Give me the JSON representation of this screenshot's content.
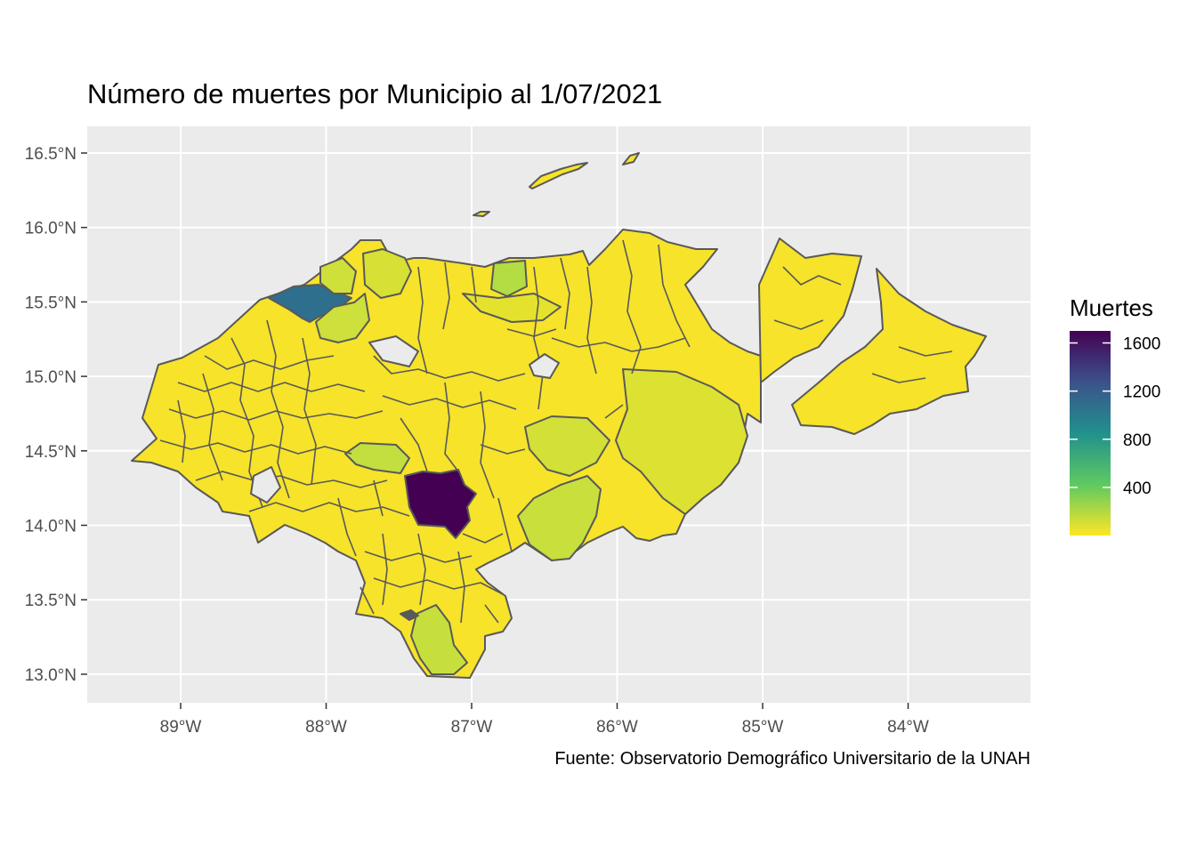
{
  "title": "Número de muertes por Municipio al 1/07/2021",
  "caption": "Fuente: Observatorio Demográfico Universitario de la UNAH",
  "map": {
    "region": "Honduras",
    "projection": "lon/lat",
    "background_color": "#ebebeb",
    "grid_color": "#ffffff",
    "border_color": "#595959",
    "lon_range": [
      -89.6,
      -83.2
    ],
    "lat_range": [
      12.8,
      16.7
    ],
    "x_ticks": [
      {
        "value": -89,
        "label": "89°W"
      },
      {
        "value": -88,
        "label": "88°W"
      },
      {
        "value": -87,
        "label": "87°W"
      },
      {
        "value": -86,
        "label": "86°W"
      },
      {
        "value": -85,
        "label": "85°W"
      },
      {
        "value": -84,
        "label": "84°W"
      }
    ],
    "y_ticks": [
      {
        "value": 16.5,
        "label": "16.5°N"
      },
      {
        "value": 16.0,
        "label": "16.0°N"
      },
      {
        "value": 15.5,
        "label": "15.5°N"
      },
      {
        "value": 15.0,
        "label": "15.0°N"
      },
      {
        "value": 14.5,
        "label": "14.5°N"
      },
      {
        "value": 14.0,
        "label": "14.0°N"
      },
      {
        "value": 13.5,
        "label": "13.5°N"
      },
      {
        "value": 13.0,
        "label": "13.0°N"
      }
    ]
  },
  "legend": {
    "title": "Muertes",
    "min": 0,
    "max": 1700,
    "breaks": [
      {
        "value": 1600,
        "label": "1600"
      },
      {
        "value": 1200,
        "label": "1200"
      },
      {
        "value": 800,
        "label": "800"
      },
      {
        "value": 400,
        "label": "400"
      }
    ],
    "palette": [
      "#fde725",
      "#5ec962",
      "#21918c",
      "#3b528b",
      "#440154"
    ]
  }
}
